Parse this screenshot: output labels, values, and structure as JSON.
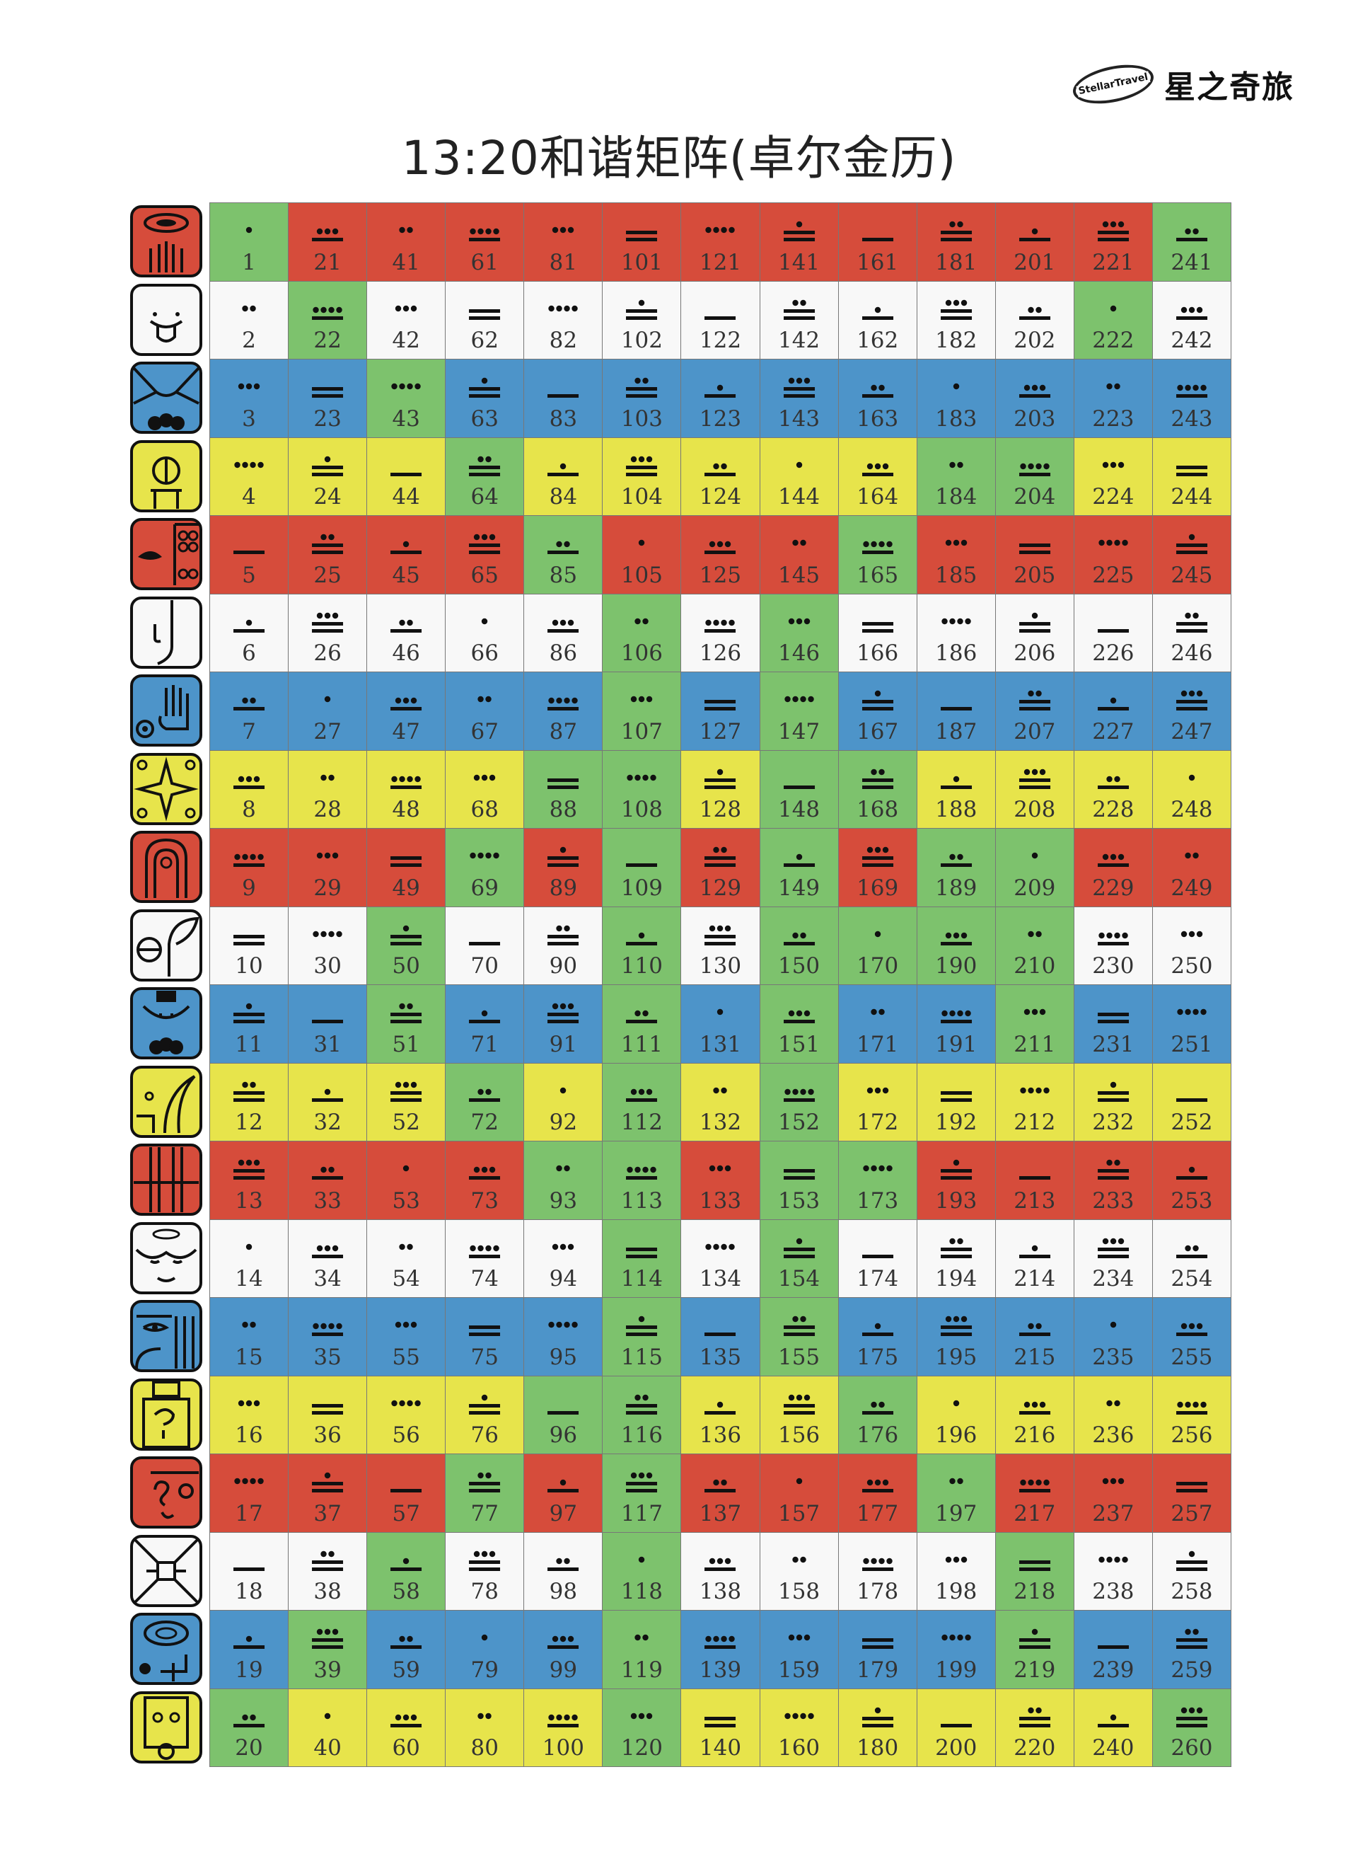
{
  "brand": {
    "badge": "StellarTravel",
    "name": "星之奇旅"
  },
  "title": "13:20和谐矩阵(卓尔金历)",
  "colors": {
    "red": "#d64c3b",
    "white": "#f8f8f8",
    "blue": "#4d94c9",
    "yellow": "#e7e44b",
    "green": "#7dc26d",
    "border": "#777777",
    "ink": "#111111"
  },
  "day_signs": [
    {
      "name": "red-dragon-glyph",
      "color": "red"
    },
    {
      "name": "white-wind-glyph",
      "color": "white"
    },
    {
      "name": "blue-night-glyph",
      "color": "blue"
    },
    {
      "name": "yellow-seed-glyph",
      "color": "yellow"
    },
    {
      "name": "red-serpent-glyph",
      "color": "red"
    },
    {
      "name": "white-worldbridger-glyph",
      "color": "white"
    },
    {
      "name": "blue-hand-glyph",
      "color": "blue"
    },
    {
      "name": "yellow-star-glyph",
      "color": "yellow"
    },
    {
      "name": "red-moon-glyph",
      "color": "red"
    },
    {
      "name": "white-dog-glyph",
      "color": "white"
    },
    {
      "name": "blue-monkey-glyph",
      "color": "blue"
    },
    {
      "name": "yellow-human-glyph",
      "color": "yellow"
    },
    {
      "name": "red-skywalker-glyph",
      "color": "red"
    },
    {
      "name": "white-wizard-glyph",
      "color": "white"
    },
    {
      "name": "blue-eagle-glyph",
      "color": "blue"
    },
    {
      "name": "yellow-warrior-glyph",
      "color": "yellow"
    },
    {
      "name": "red-earth-glyph",
      "color": "red"
    },
    {
      "name": "white-mirror-glyph",
      "color": "white"
    },
    {
      "name": "blue-storm-glyph",
      "color": "blue"
    },
    {
      "name": "yellow-sun-glyph",
      "color": "yellow"
    }
  ],
  "galactic_activation_portals": [
    1,
    20,
    22,
    39,
    43,
    50,
    51,
    58,
    64,
    69,
    72,
    77,
    85,
    88,
    93,
    96,
    106,
    107,
    108,
    109,
    110,
    111,
    112,
    113,
    114,
    115,
    116,
    117,
    118,
    119,
    120,
    146,
    147,
    148,
    149,
    150,
    151,
    152,
    153,
    154,
    155,
    165,
    168,
    170,
    173,
    176,
    184,
    189,
    190,
    197,
    204,
    209,
    210,
    211,
    218,
    219,
    222,
    241,
    260
  ]
}
